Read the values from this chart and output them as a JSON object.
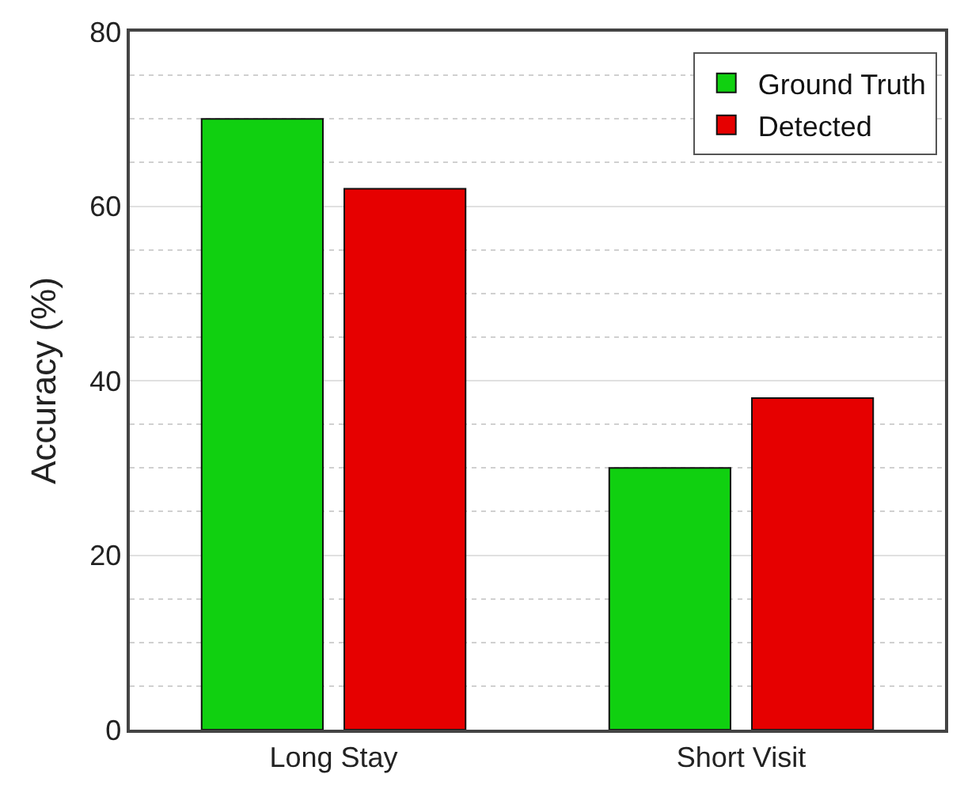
{
  "chart_data": {
    "type": "bar",
    "ylabel": "Accuracy (%)",
    "categories": [
      "Long Stay",
      "Short Visit"
    ],
    "series": [
      {
        "name": "Ground Truth",
        "color": "#10d010",
        "values": [
          70,
          30
        ]
      },
      {
        "name": "Detected",
        "color": "#e60000",
        "values": [
          62,
          38
        ]
      }
    ],
    "ylim": [
      0,
      80
    ],
    "yticks": [
      0,
      20,
      40,
      60,
      80
    ],
    "grid": "y",
    "legend": "top right"
  }
}
